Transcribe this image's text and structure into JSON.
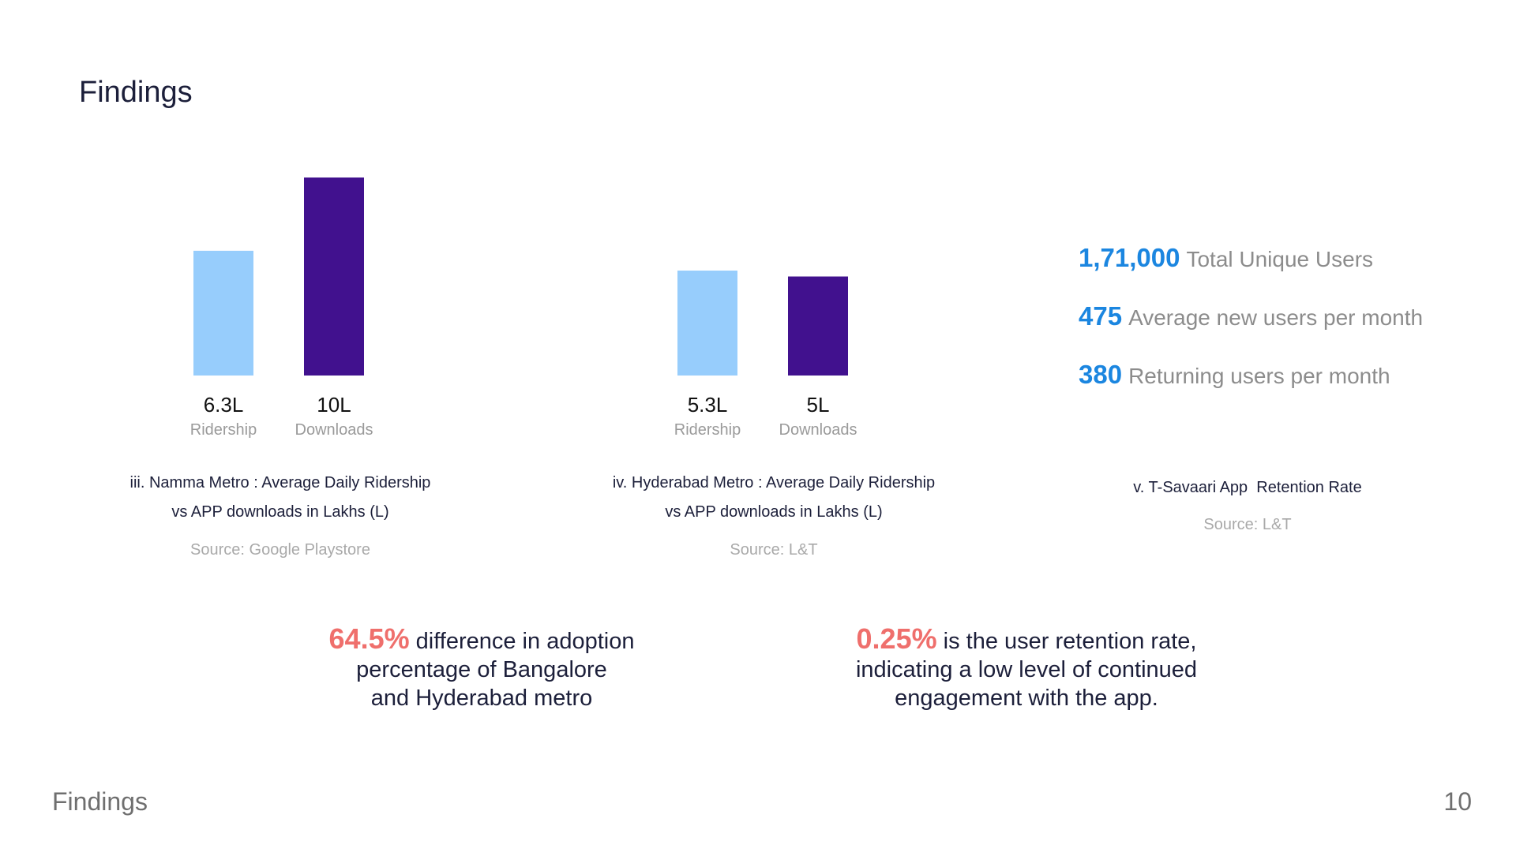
{
  "page": {
    "title": "Findings",
    "footer_label": "Findings",
    "page_number": "10"
  },
  "colors": {
    "ridership": "#97cdfc",
    "downloads": "#41118e",
    "stat_number": "#1b86e0",
    "highlight": "#ef6f6c"
  },
  "chart_data": [
    {
      "type": "bar",
      "categories": [
        "Ridership",
        "Downloads"
      ],
      "values": [
        6.3,
        10
      ],
      "value_labels": [
        "6.3L",
        "10L"
      ],
      "title": "iii. Namma Metro : Average Daily Ridership vs APP downloads in Lakhs (L)",
      "caption_lines": [
        "iii. Namma Metro : Average Daily Ridership",
        "vs APP downloads in Lakhs (L)"
      ],
      "source": "Source: Google Playstore",
      "ylim": [
        0,
        10
      ]
    },
    {
      "type": "bar",
      "categories": [
        "Ridership",
        "Downloads"
      ],
      "values": [
        5.3,
        5
      ],
      "value_labels": [
        "5.3L",
        "5L"
      ],
      "title": "iv. Hyderabad Metro : Average Daily Ridership vs APP downloads in Lakhs (L)",
      "caption_lines": [
        "iv. Hyderabad Metro : Average Daily Ridership",
        "vs APP downloads in Lakhs (L)"
      ],
      "source": "Source: L&T",
      "ylim": [
        0,
        10
      ]
    }
  ],
  "retention": {
    "stats": [
      {
        "number": "1,71,000",
        "label": "Total Unique Users"
      },
      {
        "number": "475",
        "label": "Average new users per month"
      },
      {
        "number": "380",
        "label": "Returning users per month"
      }
    ],
    "caption": "v. T-Savaari App  Retention Rate",
    "source": "Source: L&T"
  },
  "findings": [
    {
      "highlight": "64.5%",
      "lines": [
        "difference in adoption",
        "percentage of Bangalore",
        "and Hyderabad metro"
      ]
    },
    {
      "highlight": "0.25%",
      "lines": [
        "is the user retention rate,",
        "indicating a low level of continued",
        "engagement with the app."
      ]
    }
  ]
}
